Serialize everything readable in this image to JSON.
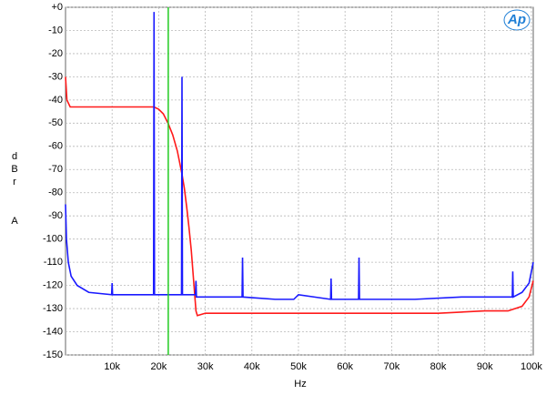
{
  "chart_data": {
    "type": "line",
    "y_label": "dBr A",
    "x_label": "Hz",
    "logo": "Ap",
    "xlim": [
      0,
      100400
    ],
    "ylim": [
      -150,
      0
    ],
    "yticks": [
      {
        "value": 0,
        "label": "+0"
      },
      -10,
      -20,
      -30,
      -40,
      -50,
      -60,
      -70,
      -80,
      -90,
      -100,
      -110,
      -120,
      -130,
      -140,
      -150
    ],
    "xticks": [
      {
        "value": 10000,
        "label": "10k"
      },
      {
        "value": 20000,
        "label": "20k"
      },
      {
        "value": 30000,
        "label": "30k"
      },
      {
        "value": 40000,
        "label": "40k"
      },
      {
        "value": 50000,
        "label": "50k"
      },
      {
        "value": 60000,
        "label": "60k"
      },
      {
        "value": 70000,
        "label": "70k"
      },
      {
        "value": 80000,
        "label": "80k"
      },
      {
        "value": 90000,
        "label": "90k"
      },
      {
        "value": 100000,
        "label": "100k"
      }
    ],
    "grid": true,
    "reference_x": 22050,
    "reference_color": "#22cc22",
    "series": [
      {
        "color": "#ff1a1a",
        "x": [
          0,
          300,
          1000,
          3000,
          6000,
          10000,
          14000,
          17000,
          19000,
          20000,
          21000,
          22000,
          23000,
          24000,
          25000,
          25500,
          26000,
          26500,
          27000,
          27500,
          28000,
          28300,
          30000,
          40000,
          50000,
          60000,
          70000,
          80000,
          90000,
          95000,
          98000,
          99500,
          100400
        ],
        "values": [
          -30,
          -40,
          -43,
          -43,
          -43,
          -43,
          -43,
          -43,
          -43,
          -44,
          -46,
          -50,
          -55,
          -62,
          -72,
          -78,
          -86,
          -95,
          -105,
          -118,
          -131,
          -133,
          -132,
          -132,
          -132,
          -132,
          -132,
          -132,
          -131,
          -131,
          -129,
          -125,
          -118
        ]
      },
      {
        "color": "#1a1aff",
        "x": [
          0,
          200,
          600,
          1200,
          2500,
          5000,
          9900,
          10000,
          10100,
          15000,
          18900,
          19000,
          19100,
          24900,
          25000,
          25100,
          27900,
          28000,
          28100,
          37900,
          38000,
          38100,
          45000,
          49000,
          50000,
          56900,
          57000,
          57100,
          62900,
          63000,
          63100,
          75000,
          85000,
          95900,
          96000,
          96100,
          98000,
          99500,
          100400
        ],
        "values": [
          -85,
          -100,
          -110,
          -116,
          -120,
          -123,
          -124,
          -119,
          -124,
          -124,
          -124,
          -2,
          -124,
          -124,
          -30,
          -124,
          -124,
          -118,
          -125,
          -125,
          -108,
          -125,
          -126,
          -126,
          -124,
          -126,
          -117,
          -126,
          -126,
          -108,
          -126,
          -126,
          -125,
          -125,
          -114,
          -125,
          -123,
          -119,
          -110
        ]
      }
    ]
  }
}
